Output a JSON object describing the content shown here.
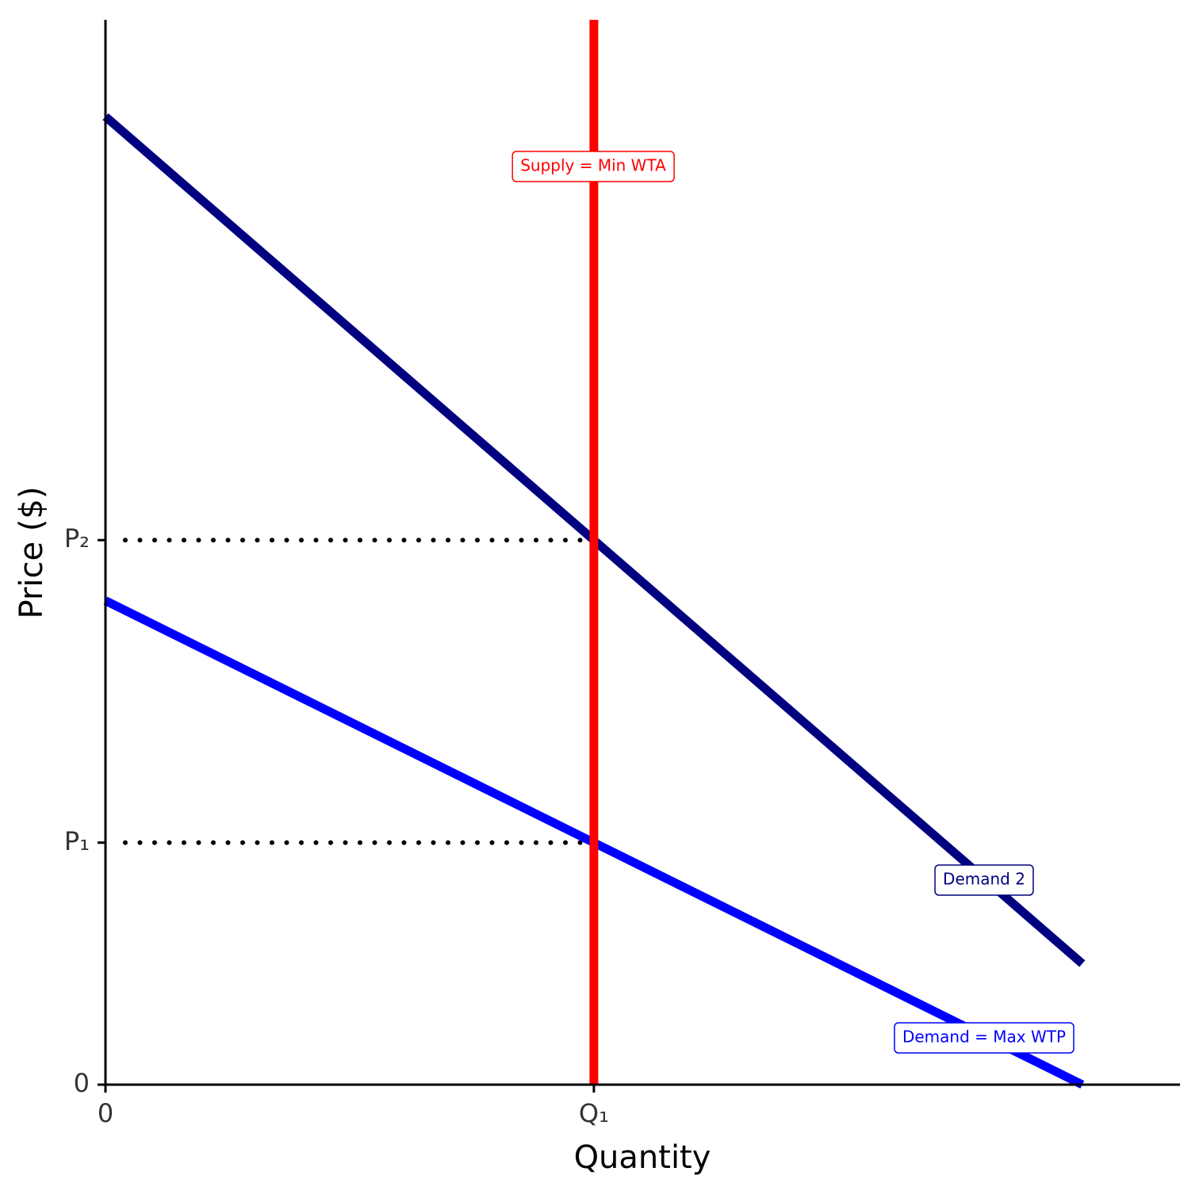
{
  "chart_data": {
    "type": "line",
    "xlabel": "Quantity",
    "ylabel": "Price ($)",
    "xlim": [
      0,
      11
    ],
    "ylim": [
      0,
      17.6
    ],
    "xticks": [
      0,
      {
        "value": 5,
        "label": "Q₁"
      }
    ],
    "yticks": [
      0,
      {
        "value": 4,
        "label": "P₁"
      },
      {
        "value": 9,
        "label": "P₂"
      }
    ],
    "series": [
      {
        "name": "Demand = Max WTP",
        "color": "#0000ff",
        "x": [
          0,
          10
        ],
        "values": [
          8,
          0
        ]
      },
      {
        "name": "Demand 2",
        "color": "#000080",
        "x": [
          0,
          10
        ],
        "values": [
          16,
          2
        ]
      },
      {
        "name": "Supply = Min WTA",
        "color": "#ff0000",
        "x": [
          5,
          5
        ],
        "values": [
          0,
          17.6
        ]
      }
    ]
  }
}
